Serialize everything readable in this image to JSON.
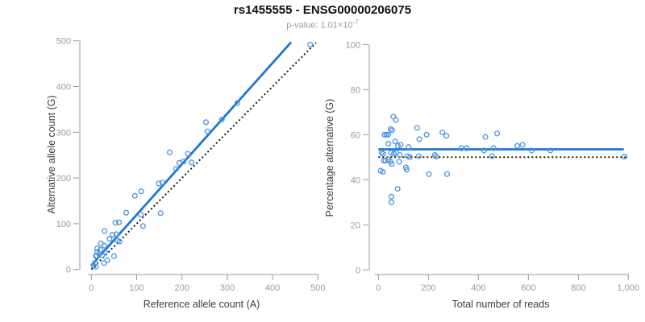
{
  "header": {
    "title": "rs1455555 - ENSG00000206075",
    "subtitle_text": "p-value: 1.01×10",
    "subtitle_exponent": "-7"
  },
  "colors": {
    "accent_blue": "#1e78d2",
    "marker_blue": "#4a94dd",
    "reference_black": "#1a1a1a",
    "axis_gray": "#9a9a9a",
    "tick_label_gray": "#9b9b9b",
    "axis_label_dark": "#3d3d3d"
  },
  "chart_data": [
    {
      "id": "allele-count-scatter",
      "type": "scatter",
      "xlabel": "Reference allele count (A)",
      "ylabel": "Alternative allele count (G)",
      "xlim": [
        0,
        500
      ],
      "ylim": [
        0,
        500
      ],
      "xticks": [
        0,
        100,
        200,
        300,
        400,
        500
      ],
      "xtick_labels": [
        "0",
        "100",
        "200",
        "300",
        "400",
        "500"
      ],
      "yticks": [
        0,
        100,
        200,
        300,
        400,
        500
      ],
      "ytick_labels": [
        "0",
        "100",
        "200",
        "300",
        "400",
        "500"
      ],
      "grid": false,
      "legend": null,
      "points": [
        [
          5,
          8
        ],
        [
          8,
          14
        ],
        [
          10,
          6
        ],
        [
          10,
          29
        ],
        [
          12,
          30
        ],
        [
          13,
          38
        ],
        [
          13,
          46
        ],
        [
          17,
          34
        ],
        [
          20,
          43
        ],
        [
          21,
          57
        ],
        [
          24,
          31
        ],
        [
          28,
          14
        ],
        [
          29,
          52
        ],
        [
          30,
          38
        ],
        [
          35,
          20
        ],
        [
          40,
          67
        ],
        [
          29,
          84
        ],
        [
          47,
          76
        ],
        [
          50,
          29
        ],
        [
          53,
          102
        ],
        [
          55,
          77
        ],
        [
          58,
          63
        ],
        [
          61,
          103
        ],
        [
          62,
          61
        ],
        [
          77,
          124
        ],
        [
          96,
          161
        ],
        [
          109,
          120
        ],
        [
          110,
          171
        ],
        [
          114,
          95
        ],
        [
          149,
          188
        ],
        [
          153,
          123
        ],
        [
          157,
          190
        ],
        [
          173,
          256
        ],
        [
          187,
          220
        ],
        [
          194,
          233
        ],
        [
          203,
          236
        ],
        [
          213,
          253
        ],
        [
          221,
          234
        ],
        [
          253,
          322
        ],
        [
          256,
          302
        ],
        [
          288,
          328
        ],
        [
          322,
          364
        ],
        [
          483,
          492
        ]
      ],
      "lines": [
        {
          "name": "identity-line",
          "style": "dotted",
          "color_key": "reference_black",
          "x1": 0,
          "y1": 0,
          "x2": 496,
          "y2": 496
        },
        {
          "name": "fit-line",
          "style": "solid",
          "color_key": "accent_blue",
          "x1": 0,
          "y1": 9,
          "x2": 441,
          "y2": 497
        }
      ]
    },
    {
      "id": "percentage-alternative-scatter",
      "type": "scatter",
      "xlabel": "Total number of reads",
      "ylabel": "Percentage alternative (G)",
      "xlim": [
        0,
        1000
      ],
      "ylim": [
        0,
        100
      ],
      "xticks": [
        0,
        200,
        400,
        600,
        800,
        1000
      ],
      "xtick_labels": [
        "0",
        "200",
        "400",
        "600",
        "800",
        "1,000"
      ],
      "yticks": [
        0,
        20,
        40,
        60,
        80,
        100
      ],
      "ytick_labels": [
        "0",
        "20",
        "40",
        "60",
        "80",
        "100"
      ],
      "grid": false,
      "legend": null,
      "points": [
        [
          9,
          44
        ],
        [
          13,
          52
        ],
        [
          18,
          43.5
        ],
        [
          19,
          51.5
        ],
        [
          22,
          48.5
        ],
        [
          25,
          60
        ],
        [
          29,
          48.5
        ],
        [
          32,
          60
        ],
        [
          39,
          60
        ],
        [
          40,
          49
        ],
        [
          40,
          56
        ],
        [
          48,
          48
        ],
        [
          49,
          62.5
        ],
        [
          51,
          52
        ],
        [
          52,
          32.5
        ],
        [
          52,
          30
        ],
        [
          54,
          47
        ],
        [
          55,
          62
        ],
        [
          60,
          68
        ],
        [
          62,
          51.5
        ],
        [
          67,
          57
        ],
        [
          70,
          66.5
        ],
        [
          71,
          52
        ],
        [
          77,
          36
        ],
        [
          78,
          55
        ],
        [
          83,
          48
        ],
        [
          86,
          51
        ],
        [
          89,
          55.5
        ],
        [
          110,
          45.5
        ],
        [
          113,
          44.5
        ],
        [
          116,
          50.5
        ],
        [
          121,
          54.5
        ],
        [
          126,
          50
        ],
        [
          155,
          63
        ],
        [
          162,
          50.5
        ],
        [
          164,
          58
        ],
        [
          193,
          60
        ],
        [
          202,
          42.5
        ],
        [
          226,
          51
        ],
        [
          231,
          50.3
        ],
        [
          256,
          61
        ],
        [
          272,
          59.5
        ],
        [
          275,
          42.5
        ],
        [
          332,
          54
        ],
        [
          353,
          54
        ],
        [
          423,
          53
        ],
        [
          428,
          59
        ],
        [
          455,
          50.5
        ],
        [
          461,
          54
        ],
        [
          475,
          60.5
        ],
        [
          556,
          55
        ],
        [
          577,
          55.5
        ],
        [
          613,
          53
        ],
        [
          688,
          53
        ],
        [
          985,
          50.3
        ]
      ],
      "lines": [
        {
          "name": "reference-line",
          "style": "dotted",
          "color_key": "reference_black",
          "x1": 0,
          "y1": 50,
          "x2": 1000,
          "y2": 50
        },
        {
          "name": "fit-line",
          "style": "solid",
          "color_key": "accent_blue",
          "x1": 0,
          "y1": 53.5,
          "x2": 982,
          "y2": 53.5
        }
      ]
    }
  ]
}
